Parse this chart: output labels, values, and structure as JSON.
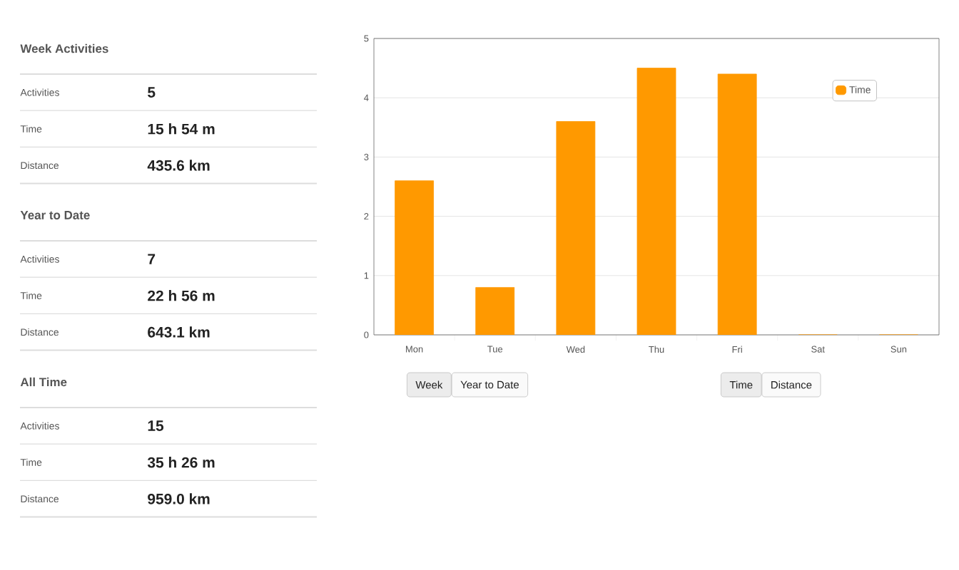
{
  "chart_data": [
    {
      "type": "other",
      "title": "Week Activities",
      "annotations": [
        "Activities",
        "5",
        "Time",
        "15 h 54 m",
        "Distance",
        "435.6 km"
      ]
    },
    {
      "type": "other",
      "title": "Year to Date",
      "annotations": [
        "Activities",
        "7",
        "Time",
        "22 h 56 m",
        "Distance",
        "643.1 km"
      ]
    },
    {
      "type": "other",
      "title": "All Time",
      "annotations": [
        "Activities",
        "15",
        "Time",
        "35 h 26 m",
        "Distance",
        "959.0 km"
      ]
    },
    {
      "type": "bar",
      "categories": [
        "Mon",
        "Tue",
        "Wed",
        "Thu",
        "Fri",
        "Sat",
        "Sun"
      ],
      "series": [
        {
          "name": "Time",
          "color": "#ff9900",
          "values": [
            2.6,
            0.8,
            3.6,
            4.5,
            4.4,
            0,
            0
          ]
        }
      ],
      "ylim": [
        0,
        5
      ],
      "yticks": [
        0,
        1,
        2,
        3,
        4,
        5
      ],
      "grid": "y",
      "legend": "top right",
      "annotations": [
        "Week",
        "Year to Date",
        "Time",
        "Distance"
      ]
    }
  ]
}
